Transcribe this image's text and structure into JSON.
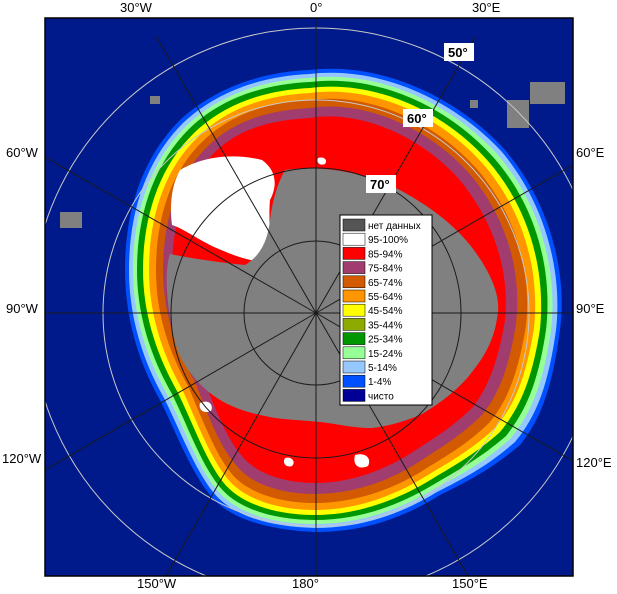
{
  "map": {
    "longitude_labels": {
      "top": [
        "30°W",
        "0°",
        "30°E"
      ],
      "left": [
        "60°W",
        "90°W",
        "120°W"
      ],
      "right": [
        "60°E",
        "90°E",
        "120°E"
      ],
      "bottom": [
        "150°W",
        "180°",
        "150°E"
      ]
    },
    "latitude_labels": [
      "50°",
      "60°",
      "70°"
    ],
    "colors": {
      "ocean": "#001a8c",
      "land": "#808080",
      "no_data": "#555555",
      "frame": "#000000"
    }
  },
  "legend": {
    "items": [
      {
        "label": "нет данных",
        "color": "#555555"
      },
      {
        "label": "95-100%",
        "color": "#ffffff"
      },
      {
        "label": "85-94%",
        "color": "#ff0000"
      },
      {
        "label": "75-84%",
        "color": "#a03c6e"
      },
      {
        "label": "65-74%",
        "color": "#d25a00"
      },
      {
        "label": "55-64%",
        "color": "#ff9600"
      },
      {
        "label": "45-54%",
        "color": "#ffff00"
      },
      {
        "label": "35-44%",
        "color": "#8caa00"
      },
      {
        "label": "25-34%",
        "color": "#009600"
      },
      {
        "label": "15-24%",
        "color": "#96ff96"
      },
      {
        "label": "5-14%",
        "color": "#96c8ff"
      },
      {
        "label": "1-4%",
        "color": "#0050ff"
      },
      {
        "label": "чисто",
        "color": "#000096"
      }
    ]
  }
}
